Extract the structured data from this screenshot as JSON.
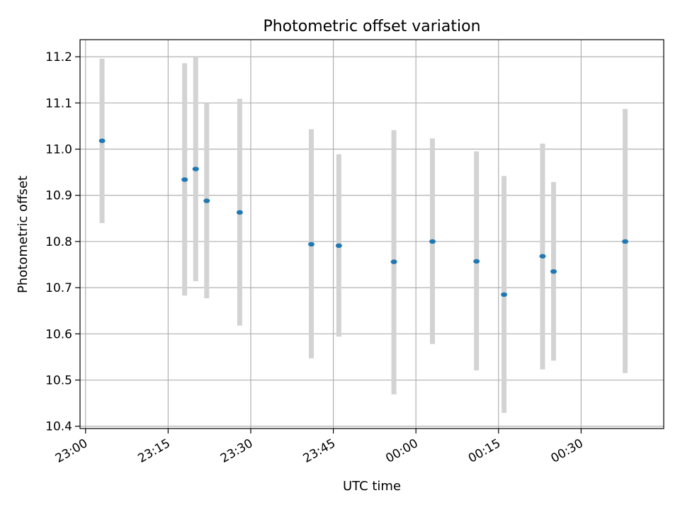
{
  "chart_data": {
    "type": "scatter",
    "title": "Photometric offset variation",
    "xlabel": "UTC time",
    "ylabel": "Photometric offset",
    "x_axis_kind": "time",
    "xlim": [
      "22:59",
      "00:45"
    ],
    "ylim": [
      10.395,
      11.237
    ],
    "grid": true,
    "xticks": [
      "23:00",
      "23:15",
      "23:30",
      "23:45",
      "00:00",
      "00:15",
      "00:30"
    ],
    "yticks": [
      10.4,
      10.5,
      10.6,
      10.7,
      10.8,
      10.9,
      11.0,
      11.1,
      11.2
    ],
    "ytick_labels": [
      "10.4",
      "10.5",
      "10.6",
      "10.7",
      "10.8",
      "10.9",
      "11.0",
      "11.1",
      "11.2"
    ],
    "errorbar_color": "#d3d3d3",
    "point_color": "#1f77b4",
    "points": [
      {
        "x": "23:03",
        "y": 11.018,
        "yerr": [
          10.84,
          11.196
        ]
      },
      {
        "x": "23:18",
        "y": 10.934,
        "yerr": [
          10.683,
          11.186
        ]
      },
      {
        "x": "23:20",
        "y": 10.957,
        "yerr": [
          10.714,
          11.2
        ]
      },
      {
        "x": "23:22",
        "y": 10.888,
        "yerr": [
          10.677,
          11.1
        ]
      },
      {
        "x": "23:28",
        "y": 10.863,
        "yerr": [
          10.618,
          11.109
        ]
      },
      {
        "x": "23:41",
        "y": 10.794,
        "yerr": [
          10.547,
          11.043
        ]
      },
      {
        "x": "23:46",
        "y": 10.791,
        "yerr": [
          10.594,
          10.989
        ]
      },
      {
        "x": "23:56",
        "y": 10.756,
        "yerr": [
          10.469,
          11.041
        ]
      },
      {
        "x": "00:03",
        "y": 10.8,
        "yerr": [
          10.578,
          11.023
        ]
      },
      {
        "x": "00:11",
        "y": 10.757,
        "yerr": [
          10.521,
          10.995
        ]
      },
      {
        "x": "00:16",
        "y": 10.685,
        "yerr": [
          10.429,
          10.942
        ]
      },
      {
        "x": "00:23",
        "y": 10.768,
        "yerr": [
          10.523,
          11.012
        ]
      },
      {
        "x": "00:25",
        "y": 10.735,
        "yerr": [
          10.542,
          10.929
        ]
      },
      {
        "x": "00:38",
        "y": 10.8,
        "yerr": [
          10.515,
          11.087
        ]
      }
    ]
  }
}
